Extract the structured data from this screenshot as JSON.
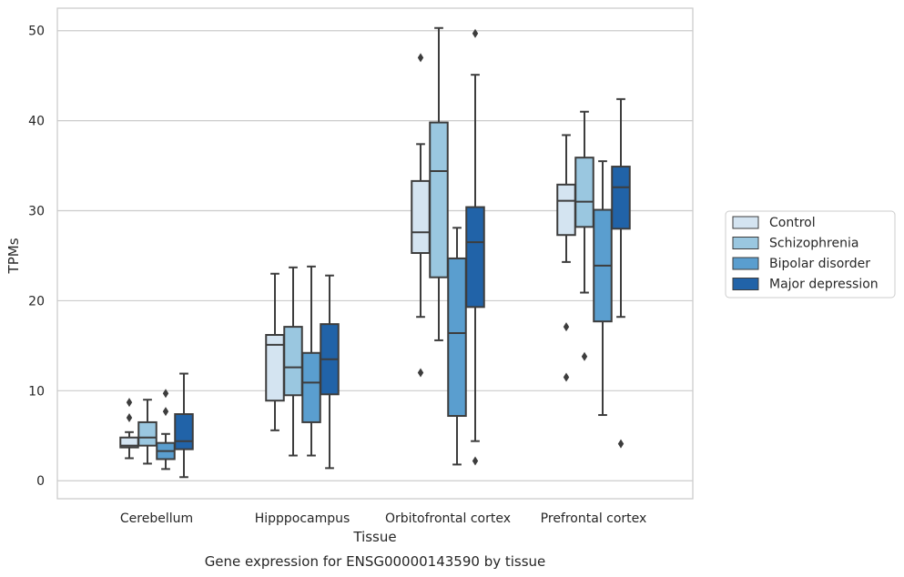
{
  "chart_data": {
    "type": "boxplot",
    "title": "Gene expression for ENSG00000143590 by tissue",
    "xlabel": "Tissue",
    "ylabel": "TPMs",
    "categories": [
      "Cerebellum",
      "Hipppocampus",
      "Orbitofrontal cortex",
      "Prefrontal cortex"
    ],
    "ylim": [
      -2,
      52.5
    ],
    "yticks": [
      0,
      10,
      20,
      30,
      40,
      50
    ],
    "grid": "horizontal",
    "legend_position": "right",
    "series": [
      {
        "name": "Control",
        "color": "#d4e4f1",
        "boxes": [
          {
            "whisker_low": 2.5,
            "q1": 3.7,
            "median": 3.9,
            "q3": 4.8,
            "whisker_high": 5.4,
            "outliers": [
              8.7,
              7.0
            ]
          },
          {
            "whisker_low": 5.6,
            "q1": 8.9,
            "median": 15.1,
            "q3": 16.2,
            "whisker_high": 23.0,
            "outliers": []
          },
          {
            "whisker_low": 18.2,
            "q1": 25.3,
            "median": 27.6,
            "q3": 33.3,
            "whisker_high": 37.4,
            "outliers": [
              47.0,
              12.0
            ]
          },
          {
            "whisker_low": 24.3,
            "q1": 27.3,
            "median": 31.1,
            "q3": 32.9,
            "whisker_high": 38.4,
            "outliers": [
              17.1,
              11.5
            ]
          }
        ]
      },
      {
        "name": "Schizophrenia",
        "color": "#9ac7e0",
        "boxes": [
          {
            "whisker_low": 1.9,
            "q1": 3.9,
            "median": 4.8,
            "q3": 6.5,
            "whisker_high": 9.0,
            "outliers": []
          },
          {
            "whisker_low": 2.8,
            "q1": 9.5,
            "median": 12.6,
            "q3": 17.1,
            "whisker_high": 23.7,
            "outliers": []
          },
          {
            "whisker_low": 15.6,
            "q1": 22.6,
            "median": 34.4,
            "q3": 39.8,
            "whisker_high": 50.3,
            "outliers": []
          },
          {
            "whisker_low": 20.9,
            "q1": 28.2,
            "median": 31.0,
            "q3": 35.9,
            "whisker_high": 41.0,
            "outliers": [
              13.8
            ]
          }
        ]
      },
      {
        "name": "Bipolar disorder",
        "color": "#5a9ecf",
        "boxes": [
          {
            "whisker_low": 1.3,
            "q1": 2.4,
            "median": 3.3,
            "q3": 4.2,
            "whisker_high": 5.2,
            "outliers": [
              9.7,
              7.7
            ]
          },
          {
            "whisker_low": 2.8,
            "q1": 6.5,
            "median": 10.9,
            "q3": 14.2,
            "whisker_high": 23.8,
            "outliers": []
          },
          {
            "whisker_low": 1.8,
            "q1": 7.2,
            "median": 16.4,
            "q3": 24.7,
            "whisker_high": 28.1,
            "outliers": []
          },
          {
            "whisker_low": 7.3,
            "q1": 17.7,
            "median": 23.9,
            "q3": 30.1,
            "whisker_high": 35.5,
            "outliers": []
          }
        ]
      },
      {
        "name": "Major depression",
        "color": "#2163a8",
        "boxes": [
          {
            "whisker_low": 0.4,
            "q1": 3.5,
            "median": 4.4,
            "q3": 7.4,
            "whisker_high": 11.9,
            "outliers": []
          },
          {
            "whisker_low": 1.4,
            "q1": 9.6,
            "median": 13.5,
            "q3": 17.4,
            "whisker_high": 22.8,
            "outliers": []
          },
          {
            "whisker_low": 4.4,
            "q1": 19.3,
            "median": 26.5,
            "q3": 30.4,
            "whisker_high": 45.1,
            "outliers": [
              49.7,
              2.2
            ]
          },
          {
            "whisker_low": 18.2,
            "q1": 28.0,
            "median": 32.6,
            "q3": 34.9,
            "whisker_high": 42.4,
            "outliers": [
              4.1
            ]
          }
        ]
      }
    ]
  }
}
